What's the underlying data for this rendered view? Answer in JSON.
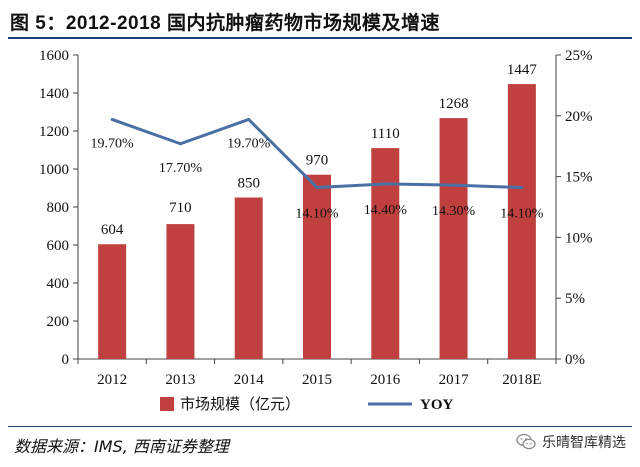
{
  "figure": {
    "title": "图 5：2012-2018 国内抗肿瘤药物市场规模及增速",
    "source": "数据来源：IMS, 西南证券整理",
    "watermark": "乐晴智库精选",
    "watermark_icon": "wechat-icon"
  },
  "chart_data": {
    "type": "bar",
    "categories": [
      "2012",
      "2013",
      "2014",
      "2015",
      "2016",
      "2017",
      "2018E"
    ],
    "series": [
      {
        "name": "市场规模（亿元）",
        "type": "bar",
        "axis": "left",
        "values": [
          604,
          710,
          850,
          970,
          1110,
          1268,
          1447
        ],
        "labels": [
          "604",
          "710",
          "850",
          "970",
          "1110",
          "1268",
          "1447"
        ],
        "color": "#c0403f"
      },
      {
        "name": "YOY",
        "type": "line",
        "axis": "right",
        "values": [
          19.7,
          17.7,
          19.7,
          14.1,
          14.4,
          14.3,
          14.1
        ],
        "labels": [
          "19.70%",
          "17.70%",
          "19.70%",
          "14.10%",
          "14.40%",
          "14.30%",
          "14.10%"
        ],
        "color": "#4a6fa5"
      }
    ],
    "y_left": {
      "ylim": [
        0,
        1600
      ],
      "ticks": [
        0,
        200,
        400,
        600,
        800,
        1000,
        1200,
        1400,
        1600
      ],
      "tick_labels": [
        "0",
        "200",
        "400",
        "600",
        "800",
        "1000",
        "1200",
        "1400",
        "1600"
      ]
    },
    "y_right": {
      "ylim": [
        0,
        25
      ],
      "ticks": [
        0,
        5,
        10,
        15,
        20,
        25
      ],
      "tick_labels": [
        "0%",
        "5%",
        "10%",
        "15%",
        "20%",
        "25%"
      ]
    },
    "grid": false,
    "legend_position": "bottom"
  }
}
